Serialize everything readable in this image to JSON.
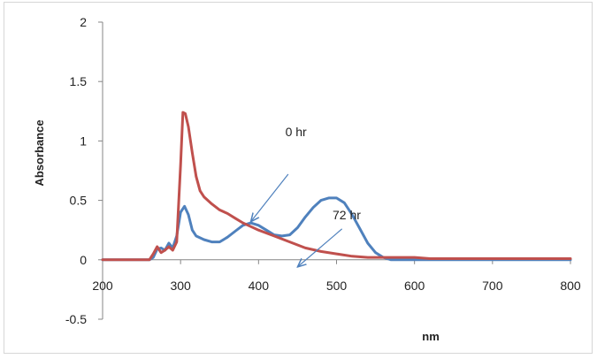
{
  "chart_data": {
    "type": "line",
    "title": "",
    "xlabel": "nm",
    "ylabel": "Absorbance",
    "xlim": [
      200,
      800
    ],
    "ylim": [
      -0.5,
      2
    ],
    "x_ticks": [
      200,
      300,
      400,
      500,
      600,
      700,
      800
    ],
    "x_tick_labels": [
      "200",
      "300",
      "400",
      "500",
      "600",
      "700",
      "800"
    ],
    "y_ticks": [
      -0.5,
      0,
      0.5,
      1,
      1.5,
      2
    ],
    "y_tick_labels": [
      "-0.5",
      "0",
      "0.5",
      "1",
      "1.5",
      "2"
    ],
    "grid": false,
    "legend": "none",
    "series": [
      {
        "label": "0 hr",
        "color": "#4f81bd",
        "points": [
          [
            200,
            0
          ],
          [
            260,
            0
          ],
          [
            265,
            0.02
          ],
          [
            270,
            0.09
          ],
          [
            275,
            0.1
          ],
          [
            280,
            0.08
          ],
          [
            285,
            0.14
          ],
          [
            290,
            0.1
          ],
          [
            295,
            0.2
          ],
          [
            300,
            0.4
          ],
          [
            305,
            0.45
          ],
          [
            310,
            0.38
          ],
          [
            315,
            0.25
          ],
          [
            320,
            0.2
          ],
          [
            330,
            0.17
          ],
          [
            340,
            0.15
          ],
          [
            350,
            0.15
          ],
          [
            360,
            0.19
          ],
          [
            370,
            0.24
          ],
          [
            380,
            0.29
          ],
          [
            390,
            0.31
          ],
          [
            400,
            0.29
          ],
          [
            410,
            0.25
          ],
          [
            420,
            0.21
          ],
          [
            430,
            0.2
          ],
          [
            440,
            0.21
          ],
          [
            450,
            0.27
          ],
          [
            460,
            0.36
          ],
          [
            470,
            0.44
          ],
          [
            480,
            0.5
          ],
          [
            490,
            0.52
          ],
          [
            500,
            0.52
          ],
          [
            510,
            0.48
          ],
          [
            520,
            0.38
          ],
          [
            530,
            0.26
          ],
          [
            540,
            0.14
          ],
          [
            550,
            0.06
          ],
          [
            560,
            0.02
          ],
          [
            570,
            0.0
          ],
          [
            580,
            0.0
          ],
          [
            800,
            0.0
          ]
        ]
      },
      {
        "label": "72 hr",
        "color": "#c0504d",
        "points": [
          [
            200,
            0
          ],
          [
            260,
            0
          ],
          [
            265,
            0.05
          ],
          [
            270,
            0.11
          ],
          [
            275,
            0.06
          ],
          [
            280,
            0.08
          ],
          [
            285,
            0.11
          ],
          [
            290,
            0.08
          ],
          [
            295,
            0.15
          ],
          [
            300,
            0.8
          ],
          [
            303,
            1.24
          ],
          [
            306,
            1.23
          ],
          [
            310,
            1.12
          ],
          [
            315,
            0.9
          ],
          [
            320,
            0.7
          ],
          [
            325,
            0.58
          ],
          [
            330,
            0.53
          ],
          [
            340,
            0.47
          ],
          [
            350,
            0.42
          ],
          [
            360,
            0.39
          ],
          [
            370,
            0.35
          ],
          [
            380,
            0.31
          ],
          [
            390,
            0.28
          ],
          [
            400,
            0.25
          ],
          [
            420,
            0.2
          ],
          [
            440,
            0.15
          ],
          [
            460,
            0.1
          ],
          [
            480,
            0.07
          ],
          [
            500,
            0.05
          ],
          [
            520,
            0.03
          ],
          [
            540,
            0.02
          ],
          [
            560,
            0.02
          ],
          [
            580,
            0.02
          ],
          [
            600,
            0.02
          ],
          [
            620,
            0.01
          ],
          [
            650,
            0.01
          ],
          [
            700,
            0.01
          ],
          [
            750,
            0.01
          ],
          [
            800,
            0.01
          ]
        ]
      }
    ],
    "annotations": [
      {
        "text": "0 hr",
        "series": "0 hr",
        "label_at": [
          448,
          1.04
        ],
        "arrow_from": [
          438,
          0.72
        ],
        "arrow_to": [
          390,
          0.32
        ],
        "color": "#4f81bd"
      },
      {
        "text": "72 hr",
        "series": "72 hr",
        "label_at": [
          513,
          0.34
        ],
        "arrow_from": [
          507,
          0.26
        ],
        "arrow_to": [
          450,
          -0.06
        ],
        "color": "#4f81bd"
      }
    ]
  }
}
